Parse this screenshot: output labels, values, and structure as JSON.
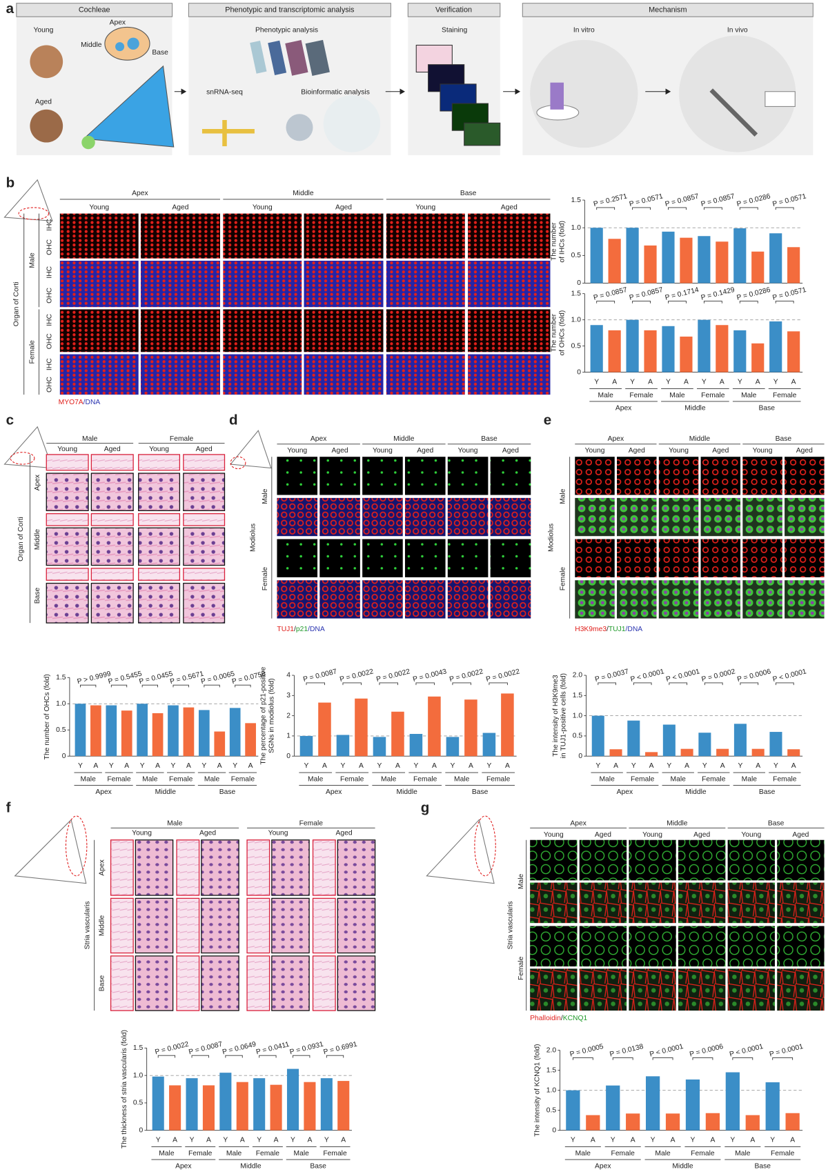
{
  "panel_labels": [
    "a",
    "b",
    "c",
    "d",
    "e",
    "f",
    "g"
  ],
  "panel_a": {
    "boxes": [
      "Cochleae",
      "Phenotypic and transcriptomic analysis",
      "Verification",
      "Mechanism"
    ],
    "labels": [
      "Young",
      "Aged",
      "Apex",
      "Middle",
      "Base",
      "Phenotypic analysis",
      "snRNA-seq",
      "Bioinformatic analysis",
      "Staining",
      "In vitro",
      "In vivo"
    ]
  },
  "panel_b_images": {
    "regions": [
      "Apex",
      "Middle",
      "Base"
    ],
    "ages": [
      "Young",
      "Aged"
    ],
    "sexes": [
      "Male",
      "Female"
    ],
    "tissue": "Organ of Corti",
    "rows": [
      "IHC",
      "OHC"
    ],
    "stain": [
      {
        "text": "MYO7A",
        "color": "#e0201c"
      },
      {
        "text": "/DNA",
        "color": "#2b35b0"
      }
    ]
  },
  "panel_c_images": {
    "sexes": [
      "Male",
      "Female"
    ],
    "ages": [
      "Young",
      "Aged"
    ],
    "regions": [
      "Apex",
      "Middle",
      "Base"
    ],
    "tissue": "Organ of Corti"
  },
  "panel_d_images": {
    "regions": [
      "Apex",
      "Middle",
      "Base"
    ],
    "ages": [
      "Young",
      "Aged"
    ],
    "sexes": [
      "Male",
      "Female"
    ],
    "tissue": "Modiolus",
    "stain": [
      {
        "text": "TUJ1",
        "color": "#e0201c"
      },
      {
        "text": "/",
        "color": "#222"
      },
      {
        "text": "p21",
        "color": "#1f9a2a"
      },
      {
        "text": "/DNA",
        "color": "#2b35b0"
      }
    ]
  },
  "panel_e_images": {
    "regions": [
      "Apex",
      "Middle",
      "Base"
    ],
    "ages": [
      "Young",
      "Aged"
    ],
    "sexes": [
      "Male",
      "Female"
    ],
    "tissue": "Modiolus",
    "stain": [
      {
        "text": "H3K9me3",
        "color": "#e0201c"
      },
      {
        "text": "/",
        "color": "#222"
      },
      {
        "text": "TUJ1",
        "color": "#1f9a2a"
      },
      {
        "text": "/DNA",
        "color": "#2b35b0"
      }
    ]
  },
  "panel_f_images": {
    "sexes": [
      "Male",
      "Female"
    ],
    "ages": [
      "Young",
      "Aged"
    ],
    "regions": [
      "Apex",
      "Middle",
      "Base"
    ],
    "tissue": "Stria vascularis"
  },
  "panel_g_images": {
    "regions": [
      "Apex",
      "Middle",
      "Base"
    ],
    "ages": [
      "Young",
      "Aged"
    ],
    "sexes": [
      "Male",
      "Female"
    ],
    "tissue": "Stria vascularis",
    "stain": [
      {
        "text": "Phalloidin",
        "color": "#e0201c"
      },
      {
        "text": "/",
        "color": "#222"
      },
      {
        "text": "KCNQ1",
        "color": "#1f9a2a"
      }
    ]
  },
  "chart_data": [
    {
      "type": "bar",
      "ylabel": [
        "The number",
        "of IHCs (fold)"
      ],
      "ylim": [
        0,
        1.5
      ],
      "yticks": [
        0,
        0.5,
        {
          "value": 1,
          "label": "1.0"
        },
        1.5
      ],
      "reference_line": 1,
      "bar_colors": [
        "#3b8ec7",
        "#f36c3d"
      ],
      "values": [
        1.0,
        0.8,
        1.0,
        0.68,
        0.93,
        0.82,
        0.85,
        0.75,
        0.99,
        0.57,
        0.9,
        0.65
      ],
      "p_values": [
        "P = 0.2571",
        "P = 0.0571",
        "P = 0.0857",
        "P = 0.0857",
        "P = 0.0286",
        "P = 0.0571"
      ]
    },
    {
      "type": "bar",
      "ylabel": [
        "The number",
        "of OHCs (fold)"
      ],
      "ylim": [
        0,
        1.5
      ],
      "yticks": [
        0,
        0.5,
        {
          "value": 1,
          "label": "1.0"
        },
        1.5
      ],
      "reference_line": 1,
      "bar_colors": [
        "#3b8ec7",
        "#f36c3d"
      ],
      "categories": [
        "Y",
        "A",
        "Y",
        "A",
        "Y",
        "A",
        "Y",
        "A",
        "Y",
        "A",
        "Y",
        "A"
      ],
      "groups": [
        "Male",
        "Female",
        "Male",
        "Female",
        "Male",
        "Female"
      ],
      "regions": [
        "Apex",
        "Middle",
        "Base"
      ],
      "values": [
        0.9,
        0.8,
        1.0,
        0.8,
        0.88,
        0.68,
        1.0,
        0.9,
        0.8,
        0.55,
        0.97,
        0.78
      ],
      "p_values": [
        "P = 0.0857",
        "P = 0.0857",
        "P = 0.1714",
        "P = 0.1429",
        "P = 0.0286",
        "P = 0.0571"
      ]
    },
    {
      "type": "bar",
      "ylabel": [
        "The number of OHCs (fold)"
      ],
      "ylim": [
        0,
        1.5
      ],
      "yticks": [
        0,
        0.5,
        {
          "value": 1,
          "label": "1.0"
        },
        1.5
      ],
      "reference_line": 1,
      "bar_colors": [
        "#3b8ec7",
        "#f36c3d"
      ],
      "categories": [
        "Y",
        "A",
        "Y",
        "A",
        "Y",
        "A",
        "Y",
        "A",
        "Y",
        "A",
        "Y",
        "A"
      ],
      "groups": [
        "Male",
        "Female",
        "Male",
        "Female",
        "Male",
        "Female"
      ],
      "regions": [
        "Apex",
        "Middle",
        "Base"
      ],
      "values": [
        1.0,
        0.97,
        0.97,
        0.87,
        1.0,
        0.82,
        0.97,
        0.93,
        0.88,
        0.47,
        0.92,
        0.63
      ],
      "p_values": [
        "P > 0.9999",
        "P = 0.5455",
        "P = 0.0455",
        "P = 0.5671",
        "P = 0.0065",
        "P = 0.0758"
      ]
    },
    {
      "type": "bar",
      "ylabel": [
        "The percentage of p21-positive",
        "SGNs in modiolus (fold)"
      ],
      "ylim": [
        0,
        4
      ],
      "yticks": [
        0,
        1,
        2,
        3,
        4
      ],
      "reference_line": 1,
      "bar_colors": [
        "#3b8ec7",
        "#f36c3d"
      ],
      "categories": [
        "Y",
        "A",
        "Y",
        "A",
        "Y",
        "A",
        "Y",
        "A",
        "Y",
        "A",
        "Y",
        "A"
      ],
      "groups": [
        "Male",
        "Female",
        "Male",
        "Female",
        "Male",
        "Female"
      ],
      "regions": [
        "Apex",
        "Middle",
        "Base"
      ],
      "values": [
        1.0,
        2.65,
        1.05,
        2.85,
        0.95,
        2.2,
        1.1,
        2.95,
        0.95,
        2.8,
        1.15,
        3.1
      ],
      "p_values": [
        "P = 0.0087",
        "P = 0.0022",
        "P = 0.0022",
        "P = 0.0043",
        "P = 0.0022",
        "P = 0.0022"
      ]
    },
    {
      "type": "bar",
      "ylabel": [
        "The intensity of H3K9me3",
        "in TUJ1-positive cells (fold)"
      ],
      "ylim": [
        0,
        2
      ],
      "yticks": [
        0,
        0.5,
        {
          "value": 1,
          "label": "1.0"
        },
        1.5,
        {
          "value": 2,
          "label": "2.0"
        }
      ],
      "reference_line": 1,
      "bar_colors": [
        "#3b8ec7",
        "#f36c3d"
      ],
      "categories": [
        "Y",
        "A",
        "Y",
        "A",
        "Y",
        "A",
        "Y",
        "A",
        "Y",
        "A",
        "Y",
        "A"
      ],
      "groups": [
        "Male",
        "Female",
        "Male",
        "Female",
        "Male",
        "Female"
      ],
      "regions": [
        "Apex",
        "Middle",
        "Base"
      ],
      "values": [
        1.0,
        0.17,
        0.88,
        0.1,
        0.78,
        0.18,
        0.58,
        0.18,
        0.8,
        0.18,
        0.6,
        0.17
      ],
      "p_values": [
        "P = 0.0037",
        "P < 0.0001",
        "P < 0.0001",
        "P = 0.0002",
        "P = 0.0006",
        "P < 0.0001"
      ]
    },
    {
      "type": "bar",
      "ylabel": [
        "The thickness of stria vascularis (fold)"
      ],
      "ylim": [
        0,
        1.5
      ],
      "yticks": [
        0,
        0.5,
        {
          "value": 1,
          "label": "1.0"
        },
        1.5
      ],
      "reference_line": 1,
      "bar_colors": [
        "#3b8ec7",
        "#f36c3d"
      ],
      "categories": [
        "Y",
        "A",
        "Y",
        "A",
        "Y",
        "A",
        "Y",
        "A",
        "Y",
        "A",
        "Y",
        "A"
      ],
      "groups": [
        "Male",
        "Female",
        "Male",
        "Female",
        "Male",
        "Female"
      ],
      "regions": [
        "Apex",
        "Middle",
        "Base"
      ],
      "values": [
        0.98,
        0.82,
        0.95,
        0.82,
        1.05,
        0.88,
        0.95,
        0.83,
        1.12,
        0.88,
        0.95,
        0.9
      ],
      "p_values": [
        "P = 0.0022",
        "P = 0.0087",
        "P = 0.0649",
        "P = 0.0411",
        "P = 0.0931",
        "P = 0.6991"
      ]
    },
    {
      "type": "bar",
      "ylabel": [
        "The intensity of KCNQ1 (fold)"
      ],
      "ylim": [
        0,
        2
      ],
      "yticks": [
        0,
        0.5,
        {
          "value": 1,
          "label": "1.0"
        },
        1.5,
        {
          "value": 2,
          "label": "2.0"
        }
      ],
      "reference_line": 1,
      "bar_colors": [
        "#3b8ec7",
        "#f36c3d"
      ],
      "categories": [
        "Y",
        "A",
        "Y",
        "A",
        "Y",
        "A",
        "Y",
        "A",
        "Y",
        "A",
        "Y",
        "A"
      ],
      "groups": [
        "Male",
        "Female",
        "Male",
        "Female",
        "Male",
        "Female"
      ],
      "regions": [
        "Apex",
        "Middle",
        "Base"
      ],
      "values": [
        1.0,
        0.38,
        1.12,
        0.42,
        1.35,
        0.42,
        1.27,
        0.43,
        1.45,
        0.38,
        1.2,
        0.43
      ],
      "p_values": [
        "P = 0.0005",
        "P = 0.0138",
        "P < 0.0001",
        "P = 0.0006",
        "P < 0.0001",
        "P = 0.0001"
      ]
    }
  ]
}
